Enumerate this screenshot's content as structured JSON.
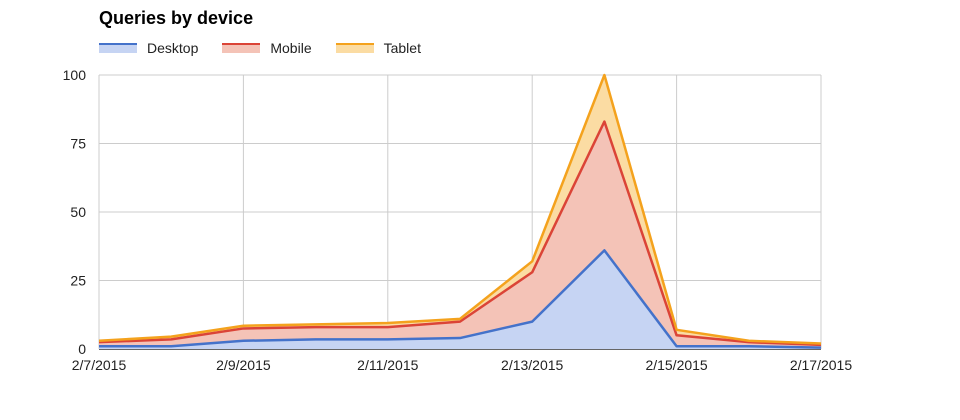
{
  "chart_data": {
    "type": "area",
    "stacked": true,
    "title": "Queries by device",
    "xlabel": "",
    "ylabel": "",
    "legend": "top-left",
    "grid": true,
    "ylim": [
      0,
      100
    ],
    "yticks": [
      0,
      25,
      50,
      75,
      100
    ],
    "x": [
      "2/7/2015",
      "2/8/2015",
      "2/9/2015",
      "2/10/2015",
      "2/11/2015",
      "2/12/2015",
      "2/13/2015",
      "2/14/2015",
      "2/15/2015",
      "2/16/2015",
      "2/17/2015"
    ],
    "xtick_labels": [
      "2/7/2015",
      "2/9/2015",
      "2/11/2015",
      "2/13/2015",
      "2/15/2015",
      "2/17/2015"
    ],
    "series": [
      {
        "name": "Desktop",
        "color": "#4472ca",
        "fill": "#c6d4f3",
        "values": [
          1,
          1,
          3,
          3.5,
          3.5,
          4,
          10,
          36,
          1,
          1,
          0.5
        ]
      },
      {
        "name": "Mobile",
        "color": "#db4437",
        "fill": "#f4c3b7",
        "values": [
          1.5,
          2.5,
          4.5,
          4.5,
          4.5,
          6,
          18,
          47,
          4,
          1.5,
          1
        ]
      },
      {
        "name": "Tablet",
        "color": "#f4a21d",
        "fill": "#fbdca3",
        "values": [
          0.5,
          1,
          1,
          1,
          1.5,
          1,
          4,
          17,
          2,
          0.5,
          0.5
        ]
      }
    ]
  }
}
